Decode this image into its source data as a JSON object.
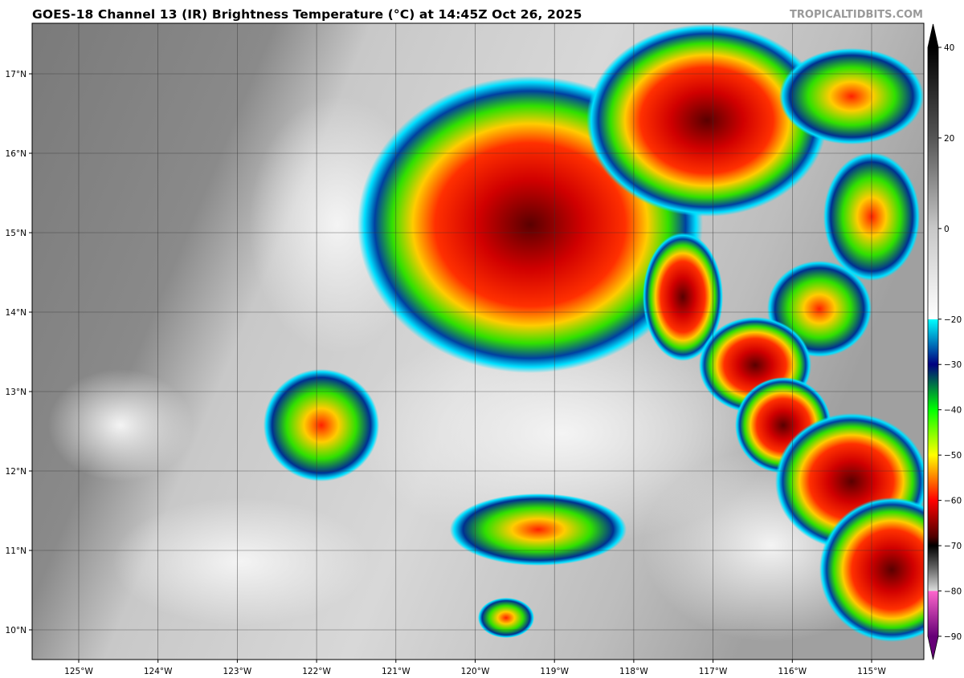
{
  "title": "GOES-18 Channel 13 (IR) Brightness Temperature (°C) at 14:45Z Oct 26, 2025",
  "brand": "TROPICALTIDBITS.COM",
  "map": {
    "lon_labels": [
      "125°W",
      "124°W",
      "123°W",
      "122°W",
      "121°W",
      "120°W",
      "119°W",
      "118°W",
      "117°W",
      "116°W",
      "115°W"
    ],
    "lat_labels": [
      "17°N",
      "16°N",
      "15°N",
      "14°N",
      "13°N",
      "12°N",
      "11°N",
      "10°N"
    ]
  },
  "colorbar": {
    "ticks": [
      "40",
      "20",
      "0",
      "−20",
      "−30",
      "−40",
      "−50",
      "−60",
      "−70",
      "−80",
      "−90"
    ],
    "tick_values": [
      40,
      20,
      0,
      -20,
      -30,
      -40,
      -50,
      -60,
      -70,
      -80,
      -90
    ],
    "range": [
      -90,
      40
    ],
    "colors": {
      "warm": "#000000",
      "mid_gray": "#808080",
      "cold_start": "#00ffff",
      "blue": "#000080",
      "green": "#00ff00",
      "yellow": "#ffff00",
      "red": "#ff0000",
      "dark_red": "#400000",
      "pink": "#ff66cc",
      "purple": "#660077"
    }
  }
}
